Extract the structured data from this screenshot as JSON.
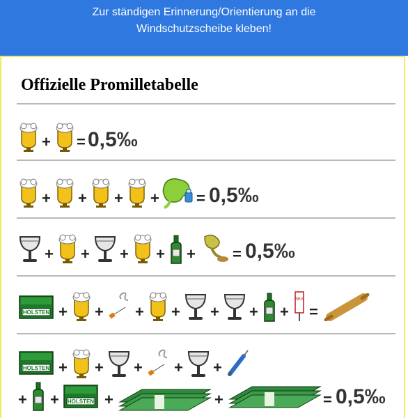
{
  "banner": {
    "line1": "Zur ständigen Erinnerung/Orientierung an die",
    "line2": "Windschutzscheibe kleben!"
  },
  "table": {
    "title": "Offizielle Promilletabelle",
    "plus": "+",
    "equals": "=",
    "value": "0,5‰",
    "crate_label": "HOLSTEN",
    "sign_label": "SEX",
    "colors": {
      "banner": "#2f78e0",
      "panel_border": "#f2ec5a",
      "beer": "#f3c21a",
      "foam": "#ffffff",
      "green": "#2d8a2e",
      "wine": "#555555"
    }
  },
  "rows": [
    [
      "beer-icon",
      "beer-icon"
    ],
    [
      "beer-icon",
      "beer-icon",
      "beer-icon",
      "beer-icon",
      "vomit-icon"
    ],
    [
      "wine-glass-icon",
      "beer-icon",
      "wine-glass-icon",
      "beer-icon",
      "bottle-icon",
      "sick-icon"
    ],
    [
      "beer-crate-icon",
      "beer-icon",
      "cigarette-icon",
      "beer-icon",
      "wine-glass-icon",
      "wine-glass-icon",
      "bottle-icon",
      "sign-icon",
      "rolling-pin-icon"
    ],
    [
      "beer-crate-icon",
      "beer-icon",
      "wine-glass-icon",
      "cigarette-icon",
      "wine-glass-icon",
      "syringe-icon",
      "bottle-icon",
      "beer-crate-icon",
      "money-icon",
      "money-icon"
    ]
  ]
}
